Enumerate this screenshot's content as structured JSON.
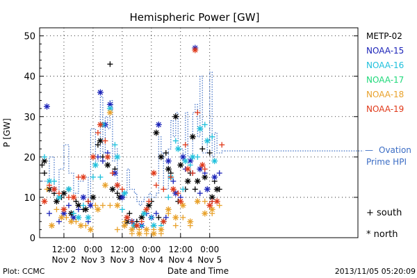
{
  "chart_data": {
    "type": "scatter",
    "title": "Hemispheric Power [GW]",
    "ylabel": "P [GW]",
    "xlabel": "Date and Time",
    "ylim": [
      0,
      52
    ],
    "yticks": [
      0,
      10,
      20,
      30,
      40,
      50
    ],
    "xlim": [
      -22,
      109
    ],
    "x_unit": "hours from 2013-11-03 00:00 UT",
    "x_ticks": [
      {
        "x": -12,
        "time": "12:00",
        "day": "Nov 2"
      },
      {
        "x": 0,
        "time": "0:00",
        "day": "Nov 3"
      },
      {
        "x": 12,
        "time": "12:00",
        "day": "Nov 3"
      },
      {
        "x": 24,
        "time": "0:00",
        "day": "Nov 4"
      },
      {
        "x": 36,
        "time": "12:00",
        "day": "Nov 4"
      },
      {
        "x": 48,
        "time": "0:00",
        "day": "Nov 5"
      }
    ],
    "grid": true,
    "legend_position": "right",
    "symbols": {
      "south": "+",
      "north": "*"
    },
    "symbol_legend": [
      {
        "symbol": "+",
        "label": "south"
      },
      {
        "symbol": "*",
        "label": "north"
      }
    ],
    "series": [
      {
        "name": "METP-02",
        "color": "#000000",
        "south": [
          [
            -21,
            18
          ],
          [
            -20,
            16
          ],
          [
            -16,
            11
          ],
          [
            -13,
            10
          ],
          [
            -10,
            12
          ],
          [
            -7,
            9
          ],
          [
            -4,
            7
          ],
          [
            -2,
            9
          ],
          [
            2,
            23
          ],
          [
            4,
            20
          ],
          [
            7,
            43
          ],
          [
            9,
            17
          ],
          [
            10,
            11
          ],
          [
            12,
            10
          ],
          [
            15,
            6
          ],
          [
            18,
            4
          ],
          [
            21,
            6
          ],
          [
            24,
            9
          ],
          [
            27,
            5
          ],
          [
            30,
            21
          ],
          [
            32,
            16
          ],
          [
            35,
            9
          ],
          [
            38,
            12
          ],
          [
            40,
            16
          ],
          [
            42,
            12
          ],
          [
            45,
            22
          ],
          [
            48,
            21
          ],
          [
            50,
            14
          ],
          [
            52,
            12
          ]
        ],
        "north": [
          [
            -20,
            19
          ],
          [
            -18,
            12
          ],
          [
            -15,
            9
          ],
          [
            -12,
            11
          ],
          [
            -9,
            6
          ],
          [
            -6,
            8
          ],
          [
            -3,
            7
          ],
          [
            0,
            10
          ],
          [
            3,
            24
          ],
          [
            6,
            18
          ],
          [
            8,
            12
          ],
          [
            11,
            10
          ],
          [
            14,
            4
          ],
          [
            17,
            3
          ],
          [
            20,
            5
          ],
          [
            23,
            8
          ],
          [
            26,
            26
          ],
          [
            28,
            20
          ],
          [
            31,
            17
          ],
          [
            34,
            30
          ],
          [
            36,
            18
          ],
          [
            39,
            14
          ],
          [
            41,
            25
          ],
          [
            43,
            14
          ],
          [
            46,
            15
          ],
          [
            49,
            10
          ],
          [
            51,
            12
          ]
        ]
      },
      {
        "name": "NOAA-15",
        "color": "#1a22b8",
        "south": [
          [
            -18,
            6
          ],
          [
            -14,
            4
          ],
          [
            -10,
            8
          ],
          [
            -6,
            7
          ],
          [
            -2,
            4
          ],
          [
            2,
            20
          ],
          [
            4,
            19
          ],
          [
            6,
            21
          ],
          [
            10,
            13
          ],
          [
            14,
            5
          ],
          [
            18,
            3
          ],
          [
            22,
            6
          ],
          [
            26,
            6
          ],
          [
            30,
            5
          ],
          [
            33,
            14
          ],
          [
            36,
            10
          ],
          [
            38,
            17
          ],
          [
            41,
            16
          ],
          [
            44,
            11
          ],
          [
            46,
            16
          ],
          [
            49,
            9
          ],
          [
            52,
            16
          ]
        ],
        "north": [
          [
            -19,
            32.5
          ],
          [
            -16,
            12
          ],
          [
            -12,
            6
          ],
          [
            -8,
            5
          ],
          [
            -4,
            10
          ],
          [
            -1,
            8
          ],
          [
            3,
            36
          ],
          [
            5,
            28
          ],
          [
            7,
            33
          ],
          [
            9,
            16
          ],
          [
            12,
            10
          ],
          [
            16,
            4
          ],
          [
            20,
            3
          ],
          [
            24,
            5
          ],
          [
            27,
            28
          ],
          [
            31,
            19
          ],
          [
            34,
            11
          ],
          [
            37,
            20
          ],
          [
            40,
            19
          ],
          [
            42,
            47
          ],
          [
            44,
            17
          ],
          [
            47,
            12
          ],
          [
            50,
            15
          ]
        ]
      },
      {
        "name": "NOAA-16",
        "color": "#1ec0dc",
        "south": [
          [
            -20,
            20
          ],
          [
            -16,
            14
          ],
          [
            -12,
            7
          ],
          [
            -8,
            6
          ],
          [
            -4,
            8
          ],
          [
            0,
            15
          ],
          [
            3,
            15
          ],
          [
            6,
            20
          ],
          [
            9,
            23
          ],
          [
            12,
            7
          ],
          [
            16,
            4
          ],
          [
            20,
            3
          ],
          [
            24,
            5
          ],
          [
            28,
            3
          ],
          [
            31,
            10
          ],
          [
            34,
            24
          ],
          [
            37,
            12
          ],
          [
            40,
            18
          ],
          [
            43,
            20
          ],
          [
            46,
            28
          ],
          [
            49,
            25
          ]
        ],
        "north": [
          [
            -18,
            14
          ],
          [
            -14,
            10
          ],
          [
            -10,
            12
          ],
          [
            -6,
            5
          ],
          [
            -2,
            5
          ],
          [
            1,
            18
          ],
          [
            4,
            28
          ],
          [
            7,
            32
          ],
          [
            10,
            20
          ],
          [
            13,
            11
          ],
          [
            17,
            3
          ],
          [
            21,
            6
          ],
          [
            25,
            3
          ],
          [
            29,
            4
          ],
          [
            32,
            15
          ],
          [
            35,
            22
          ],
          [
            38,
            19
          ],
          [
            41,
            20
          ],
          [
            44,
            27
          ],
          [
            47,
            24
          ],
          [
            50,
            19
          ]
        ]
      },
      {
        "name": "NOAA-17",
        "color": "#1fd97a",
        "south": [],
        "north": []
      },
      {
        "name": "NOAA-18",
        "color": "#e8a12a",
        "south": [
          [
            -19,
            12
          ],
          [
            -15,
            7
          ],
          [
            -11,
            5
          ],
          [
            -7,
            4
          ],
          [
            -3,
            3
          ],
          [
            1,
            8
          ],
          [
            4,
            8
          ],
          [
            7,
            8
          ],
          [
            10,
            2
          ],
          [
            13,
            4
          ],
          [
            16,
            1
          ],
          [
            19,
            2
          ],
          [
            22,
            1
          ],
          [
            25,
            2
          ],
          [
            28,
            1
          ],
          [
            31,
            6
          ],
          [
            34,
            3
          ],
          [
            37,
            5
          ],
          [
            40,
            3
          ],
          [
            43,
            9
          ],
          [
            46,
            9
          ],
          [
            49,
            6
          ],
          [
            52,
            8
          ]
        ],
        "north": [
          [
            -17,
            3
          ],
          [
            -13,
            5
          ],
          [
            -9,
            4
          ],
          [
            -5,
            3
          ],
          [
            -1,
            2
          ],
          [
            2,
            7
          ],
          [
            5,
            13
          ],
          [
            7,
            31
          ],
          [
            10,
            8
          ],
          [
            13,
            3
          ],
          [
            16,
            2
          ],
          [
            19,
            1
          ],
          [
            22,
            2
          ],
          [
            25,
            1
          ],
          [
            28,
            2
          ],
          [
            31,
            7
          ],
          [
            34,
            5
          ],
          [
            37,
            8
          ],
          [
            40,
            4
          ],
          [
            43,
            9
          ],
          [
            46,
            6
          ],
          [
            49,
            7
          ]
        ]
      },
      {
        "name": "NOAA-19",
        "color": "#e03818",
        "south": [
          [
            -18,
            13
          ],
          [
            -14,
            11
          ],
          [
            -10,
            10
          ],
          [
            -6,
            15
          ],
          [
            -2,
            9
          ],
          [
            2,
            26
          ],
          [
            5,
            24
          ],
          [
            8,
            16
          ],
          [
            12,
            12
          ],
          [
            16,
            4
          ],
          [
            20,
            4
          ],
          [
            23,
            9
          ],
          [
            26,
            13
          ],
          [
            29,
            12
          ],
          [
            32,
            15
          ],
          [
            35,
            11
          ],
          [
            38,
            23
          ],
          [
            41,
            16
          ],
          [
            43,
            31
          ],
          [
            46,
            17
          ],
          [
            49,
            9
          ],
          [
            53,
            23
          ]
        ],
        "north": [
          [
            -20,
            9
          ],
          [
            -16,
            12
          ],
          [
            -12,
            7
          ],
          [
            -8,
            10
          ],
          [
            -4,
            15
          ],
          [
            0,
            20
          ],
          [
            3,
            28
          ],
          [
            6,
            20
          ],
          [
            10,
            13
          ],
          [
            14,
            5
          ],
          [
            18,
            3
          ],
          [
            22,
            7
          ],
          [
            25,
            16
          ],
          [
            29,
            4
          ],
          [
            33,
            12
          ],
          [
            36,
            9
          ],
          [
            39,
            17
          ],
          [
            42,
            46.5
          ],
          [
            45,
            18
          ],
          [
            48,
            8
          ],
          [
            51,
            9
          ]
        ]
      }
    ],
    "ovation": {
      "name": "Ovation Prime HPI",
      "color": "#3a6cc4",
      "steps": [
        [
          -22,
          14
        ],
        [
          -18,
          20
        ],
        [
          -16,
          12
        ],
        [
          -14,
          17
        ],
        [
          -12,
          23
        ],
        [
          -10,
          16
        ],
        [
          -8,
          11
        ],
        [
          -6,
          14
        ],
        [
          -4,
          15
        ],
        [
          -2,
          9
        ],
        [
          -1,
          27
        ],
        [
          1,
          19
        ],
        [
          3,
          35
        ],
        [
          4,
          21
        ],
        [
          5,
          30
        ],
        [
          6,
          27
        ],
        [
          7,
          34
        ],
        [
          8,
          19
        ],
        [
          9,
          22
        ],
        [
          10,
          12
        ],
        [
          11,
          12
        ],
        [
          12,
          10
        ],
        [
          13,
          11
        ],
        [
          14,
          17
        ],
        [
          15,
          12
        ],
        [
          17,
          11
        ],
        [
          18,
          9
        ],
        [
          19,
          8
        ],
        [
          20,
          9
        ],
        [
          21,
          10
        ],
        [
          23,
          11
        ],
        [
          24,
          10
        ],
        [
          26,
          11
        ],
        [
          27,
          25
        ],
        [
          28,
          21
        ],
        [
          29,
          12
        ],
        [
          31,
          22
        ],
        [
          32,
          29
        ],
        [
          33,
          25
        ],
        [
          34,
          31
        ],
        [
          35,
          22
        ],
        [
          37,
          19
        ],
        [
          38,
          31
        ],
        [
          39,
          20
        ],
        [
          41,
          31
        ],
        [
          42,
          33
        ],
        [
          43,
          25
        ],
        [
          44,
          40
        ],
        [
          45,
          21
        ],
        [
          47,
          24
        ],
        [
          48,
          41
        ],
        [
          49,
          20
        ],
        [
          50,
          26
        ],
        [
          51,
          21
        ],
        [
          53,
          21.5
        ]
      ]
    }
  },
  "footer": {
    "left": "Plot: CCMC",
    "right": "2013/11/05 05:20:09"
  }
}
